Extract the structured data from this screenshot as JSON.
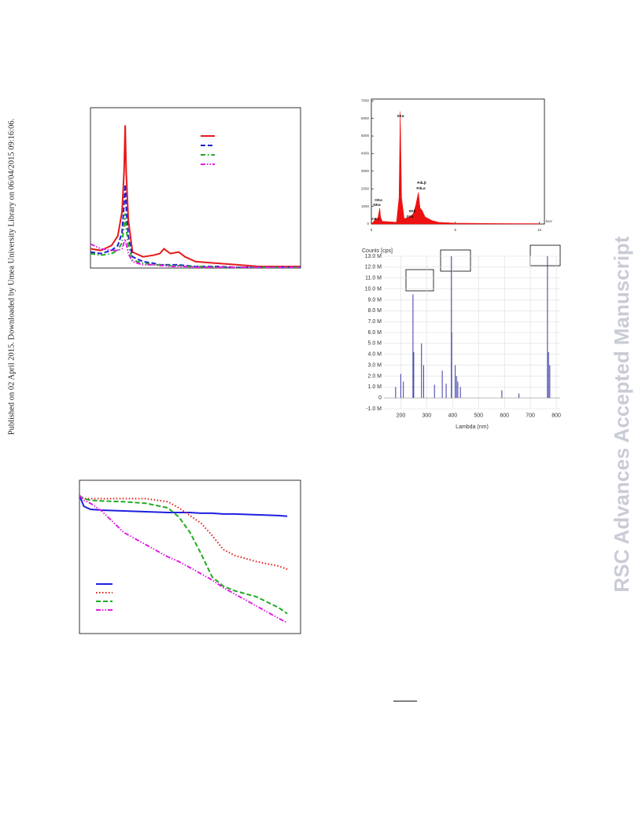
{
  "sidebar_text": "Published on 02 April 2015. Downloaded by Umea University Library on 06/04/2015 09:16:06.",
  "watermark": "RSC Advances Accepted Manuscript",
  "chart_data": [
    {
      "type": "line",
      "xlim": [
        0,
        100
      ],
      "ylim": [
        0,
        100
      ],
      "x": [
        0,
        5,
        10,
        13,
        15,
        16,
        16.5,
        17,
        18,
        20,
        25,
        30,
        33,
        35,
        38,
        42,
        45,
        50,
        60,
        70,
        80,
        100
      ],
      "series": [
        {
          "color": "#e41a1c",
          "dash": "solid",
          "values": [
            12,
            11,
            14,
            20,
            35,
            60,
            89,
            60,
            30,
            10,
            7,
            8,
            9,
            12,
            9,
            10,
            7,
            4,
            3,
            2,
            1,
            1
          ]
        },
        {
          "color": "#1f1fd0",
          "dash": "dashed",
          "values": [
            10,
            9,
            11,
            14,
            22,
            40,
            52,
            38,
            20,
            7,
            4,
            3,
            2,
            2,
            2,
            2,
            1.5,
            1,
            1,
            0.5,
            0.5,
            0.5
          ]
        },
        {
          "color": "#22aa22",
          "dash": "dashdot",
          "values": [
            9,
            8,
            9,
            11,
            16,
            26,
            34,
            25,
            14,
            5,
            3,
            2,
            2,
            2,
            1.5,
            1.5,
            1,
            1,
            0.5,
            0.5,
            0.5,
            0.5
          ]
        },
        {
          "color": "#e020e0",
          "dash": "dashdotdot",
          "values": [
            15,
            12,
            11,
            11,
            12,
            16,
            18,
            15,
            9,
            4,
            2,
            2,
            1.5,
            1.5,
            1,
            1,
            1,
            0.5,
            0.5,
            0.5,
            0.5,
            0.5
          ]
        }
      ]
    },
    {
      "type": "area",
      "xlim": [
        0,
        10.3
      ],
      "ylim": [
        0,
        7100
      ],
      "xticks": [
        0,
        5,
        10
      ],
      "yticks": [
        0,
        1000,
        2000,
        3000,
        4000,
        5000,
        6000,
        7000
      ],
      "x_unit": "keV",
      "x": [
        0,
        0.2,
        0.28,
        0.35,
        0.5,
        0.55,
        0.65,
        1.5,
        1.65,
        1.72,
        1.8,
        1.95,
        2.3,
        2.5,
        2.65,
        2.8,
        2.9,
        3.0,
        3.2,
        3.6,
        4,
        5,
        7,
        10
      ],
      "values": [
        0,
        200,
        350,
        150,
        900,
        400,
        150,
        100,
        1500,
        6400,
        1500,
        300,
        400,
        600,
        1100,
        1800,
        900,
        800,
        400,
        200,
        100,
        50,
        30,
        20
      ],
      "color": "#ee1111",
      "annotations": [
        "SKα",
        "PdLβ",
        "PdLα",
        "OKα",
        "NKα",
        "SKβ",
        "SKα",
        "CKα"
      ]
    },
    {
      "type": "stem",
      "y_label": "Counts [cps]",
      "x_label": "Lambda (nm)",
      "xlim": [
        135,
        815
      ],
      "ylim": [
        -1,
        13
      ],
      "xticks": [
        200,
        300,
        400,
        500,
        600,
        700,
        800
      ],
      "yticks": [
        {
          "value": -1,
          "label": "-1.0 M"
        },
        {
          "value": 0,
          "label": "0"
        },
        {
          "value": 1,
          "label": "1.0 M"
        },
        {
          "value": 2,
          "label": "2.0 M"
        },
        {
          "value": 3,
          "label": "3.0 M"
        },
        {
          "value": 4,
          "label": "4.0 M"
        },
        {
          "value": 5,
          "label": "5.0 M"
        },
        {
          "value": 6,
          "label": "6.0 M"
        },
        {
          "value": 7,
          "label": "7.0 M"
        },
        {
          "value": 8,
          "label": "8.0 M"
        },
        {
          "value": 9,
          "label": "9.0 M"
        },
        {
          "value": 10,
          "label": "10.0 M"
        },
        {
          "value": 11,
          "label": "11.0 M"
        },
        {
          "value": 12,
          "label": "12.0 M"
        },
        {
          "value": 13,
          "label": "13.0 M"
        }
      ],
      "grid": true,
      "x": [
        180,
        200,
        210,
        247,
        250,
        280,
        288,
        330,
        360,
        375,
        395,
        396,
        410,
        415,
        420,
        430,
        590,
        656,
        766,
        770,
        775
      ],
      "values": [
        1.0,
        2.2,
        1.5,
        9.5,
        4.2,
        5.0,
        3.0,
        1.2,
        2.5,
        1.3,
        13,
        6,
        3.0,
        2.0,
        1.5,
        1.0,
        0.7,
        0.4,
        13,
        4.2,
        3.0
      ],
      "color": "#3a3aa8"
    },
    {
      "type": "line",
      "xlim": [
        0,
        100
      ],
      "ylim": [
        0,
        100
      ],
      "x": [
        0,
        2,
        5,
        10,
        20,
        30,
        40,
        45,
        50,
        55,
        60,
        65,
        70,
        80,
        90,
        94
      ],
      "series": [
        {
          "color": "#1f1fe0",
          "dash": "solid",
          "values": [
            90,
            83,
            81,
            80.5,
            80,
            79.5,
            79,
            79,
            79,
            78.5,
            78.5,
            78,
            78,
            77.5,
            77,
            76.5
          ]
        },
        {
          "color": "#e41a1c",
          "dash": "dotted",
          "values": [
            90,
            88,
            88,
            88,
            88,
            88,
            86,
            82,
            77,
            72,
            64,
            55,
            51,
            47,
            44,
            42
          ]
        },
        {
          "color": "#22aa22",
          "dash": "dashed",
          "values": [
            90,
            88,
            87,
            86.5,
            86,
            85,
            82,
            76,
            66,
            52,
            37,
            31,
            28,
            24,
            17,
            13
          ]
        },
        {
          "color": "#e020e0",
          "dash": "dashdotdot",
          "values": [
            90,
            87,
            85,
            80,
            66,
            58,
            50,
            47,
            43,
            39,
            35,
            30,
            26,
            18,
            10,
            7
          ]
        }
      ]
    }
  ]
}
